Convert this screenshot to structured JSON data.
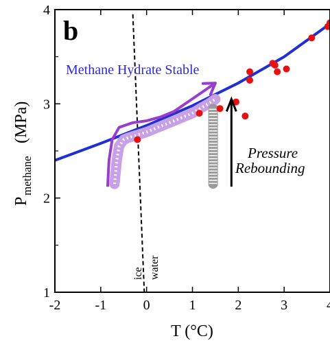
{
  "chart_data": {
    "type": "scatter",
    "panel_label": "b",
    "xlabel": "T (°C)",
    "ylabel_main": "P",
    "ylabel_sub": "methane",
    "ylabel_unit": "(MPa)",
    "xlim": [
      -2,
      4
    ],
    "ylim": [
      1,
      4
    ],
    "x_ticks": [
      -2,
      -1,
      0,
      1,
      2,
      3,
      4
    ],
    "y_ticks": [
      1,
      2,
      3,
      4
    ],
    "equilibrium_line": {
      "color": "#1f2fd6",
      "points": [
        [
          -2,
          2.4
        ],
        [
          -1,
          2.58
        ],
        [
          0,
          2.77
        ],
        [
          1,
          2.98
        ],
        [
          2,
          3.22
        ],
        [
          3,
          3.5
        ],
        [
          4,
          3.85
        ]
      ]
    },
    "data_points": {
      "color": "#e81010",
      "x": [
        -0.2,
        1.15,
        1.6,
        1.95,
        2.15,
        2.25,
        2.25,
        2.75,
        2.8,
        2.85,
        3.05,
        3.6,
        3.95,
        4.0
      ],
      "y": [
        2.62,
        2.9,
        2.95,
        3.02,
        2.87,
        3.34,
        3.25,
        3.43,
        3.41,
        3.34,
        3.37,
        3.7,
        3.82,
        3.86
      ]
    },
    "melting_line": {
      "x": [
        -0.3,
        -0.05
      ],
      "y": [
        3.95,
        1.0
      ],
      "labels": [
        "ice",
        "water"
      ]
    },
    "measured_path": {
      "color": "#c8a0e6",
      "x": [
        -0.7,
        -0.65,
        -0.6,
        -0.5,
        -0.4,
        -0.2,
        0.0,
        0.2,
        0.4,
        0.6,
        0.8,
        1.0,
        1.2,
        1.35,
        1.5
      ],
      "y": [
        2.15,
        2.4,
        2.55,
        2.62,
        2.64,
        2.67,
        2.7,
        2.74,
        2.78,
        2.82,
        2.86,
        2.9,
        2.96,
        3.0,
        3.05
      ]
    },
    "rebound_column": {
      "color": "#9a9a9a",
      "x": 1.45,
      "y": [
        2.15,
        2.95
      ]
    },
    "trend_arrow": {
      "color": "#9a3cd0",
      "x": [
        -0.85,
        -0.82,
        -0.75,
        -0.6,
        -0.3,
        0.0,
        0.3,
        0.6,
        0.9,
        1.2,
        1.5
      ],
      "y": [
        2.12,
        2.4,
        2.62,
        2.75,
        2.8,
        2.82,
        2.86,
        2.92,
        3.02,
        3.12,
        3.22
      ]
    },
    "rebound_arrow": {
      "x": 1.85,
      "y": [
        2.12,
        3.05
      ]
    },
    "annotations": {
      "region_label": "Methane Hydrate Stable",
      "rebound_line1": "Pressure",
      "rebound_line2": "Rebounding"
    }
  }
}
